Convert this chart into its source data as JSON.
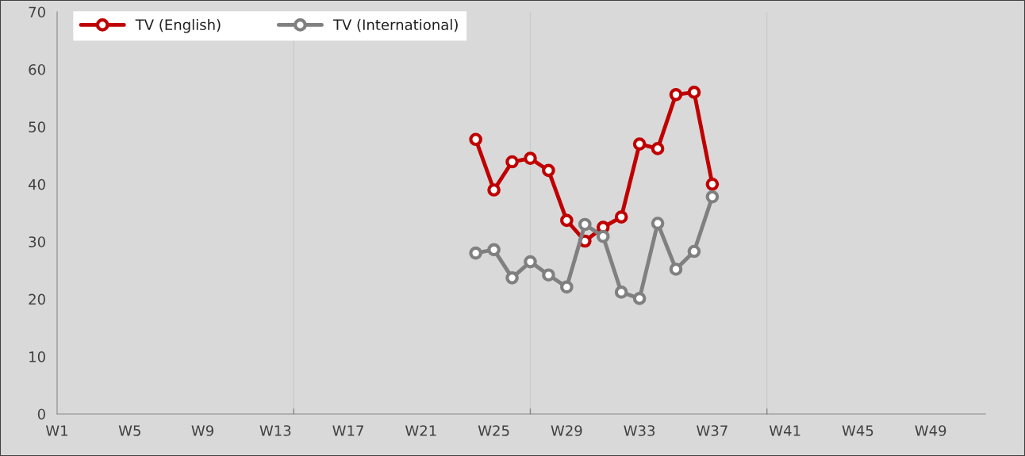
{
  "chart_data": {
    "type": "line",
    "categories": [
      "W1",
      null,
      null,
      null,
      "W5",
      null,
      null,
      null,
      "W9",
      null,
      null,
      null,
      "W13",
      null,
      null,
      null,
      "W17",
      null,
      null,
      null,
      "W21",
      null,
      null,
      null,
      "W25",
      null,
      null,
      null,
      "W29",
      null,
      null,
      null,
      "W33",
      null,
      null,
      null,
      "W37",
      null,
      null,
      null,
      "W41",
      null,
      null,
      null,
      "W45",
      null,
      null,
      null,
      "W49",
      null,
      null,
      null
    ],
    "ylim": [
      0,
      70
    ],
    "yticks": [
      0,
      10,
      20,
      30,
      40,
      50,
      60,
      70
    ],
    "series": [
      {
        "name": "TV (English)",
        "color": "#c00000",
        "values": [
          null,
          null,
          null,
          null,
          null,
          null,
          null,
          null,
          null,
          null,
          null,
          null,
          null,
          null,
          null,
          null,
          null,
          null,
          null,
          null,
          null,
          null,
          null,
          47.8,
          39.0,
          43.9,
          44.5,
          42.4,
          33.7,
          30.1,
          32.5,
          34.3,
          47.0,
          46.2,
          55.6,
          56.0,
          40.0,
          null,
          null,
          null,
          null,
          null,
          null,
          null,
          null,
          null,
          null,
          null,
          null,
          null,
          null,
          null
        ]
      },
      {
        "name": "TV (International)",
        "color": "#808080",
        "values": [
          null,
          null,
          null,
          null,
          null,
          null,
          null,
          null,
          null,
          null,
          null,
          null,
          null,
          null,
          null,
          null,
          null,
          null,
          null,
          null,
          null,
          null,
          null,
          28.0,
          28.6,
          23.7,
          26.5,
          24.2,
          22.1,
          33.0,
          30.9,
          21.2,
          20.1,
          33.2,
          25.2,
          28.3,
          37.8,
          null,
          null,
          null,
          null,
          null,
          null,
          null,
          null,
          null,
          null,
          null,
          null,
          null,
          null,
          null
        ]
      }
    ],
    "marker": "circle",
    "line_style": "solid",
    "grid": "x",
    "legend": "top left"
  }
}
